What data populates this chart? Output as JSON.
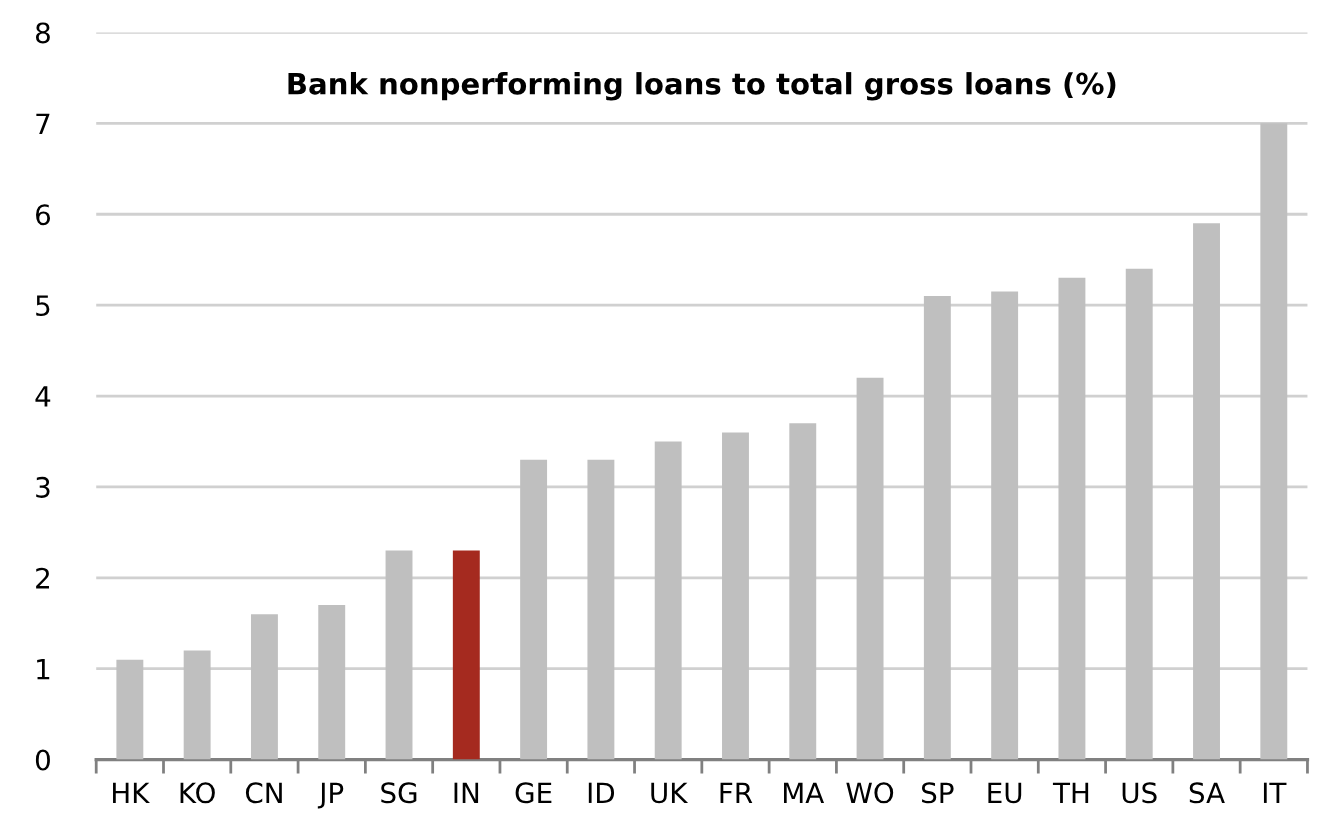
{
  "chart_data": {
    "type": "bar",
    "title": "Bank nonperforming loans to total gross loans (%)",
    "categories": [
      "HK",
      "KO",
      "CN",
      "JP",
      "SG",
      "IN",
      "GE",
      "ID",
      "UK",
      "FR",
      "MA",
      "WO",
      "SP",
      "EU",
      "TH",
      "US",
      "SA",
      "IT"
    ],
    "values": [
      1.1,
      1.2,
      1.6,
      1.7,
      2.3,
      2.3,
      3.3,
      3.3,
      3.5,
      3.6,
      3.7,
      4.2,
      5.1,
      5.15,
      5.3,
      5.4,
      5.9,
      7.0
    ],
    "colors": [
      "#bfbfbf",
      "#bfbfbf",
      "#bfbfbf",
      "#bfbfbf",
      "#bfbfbf",
      "#a52a1f",
      "#bfbfbf",
      "#bfbfbf",
      "#bfbfbf",
      "#bfbfbf",
      "#bfbfbf",
      "#bfbfbf",
      "#bfbfbf",
      "#bfbfbf",
      "#bfbfbf",
      "#bfbfbf",
      "#bfbfbf",
      "#bfbfbf"
    ],
    "ylim": [
      0,
      8
    ],
    "yticks": [
      0,
      1,
      2,
      3,
      4,
      5,
      6,
      7,
      8
    ],
    "grid": "y"
  }
}
